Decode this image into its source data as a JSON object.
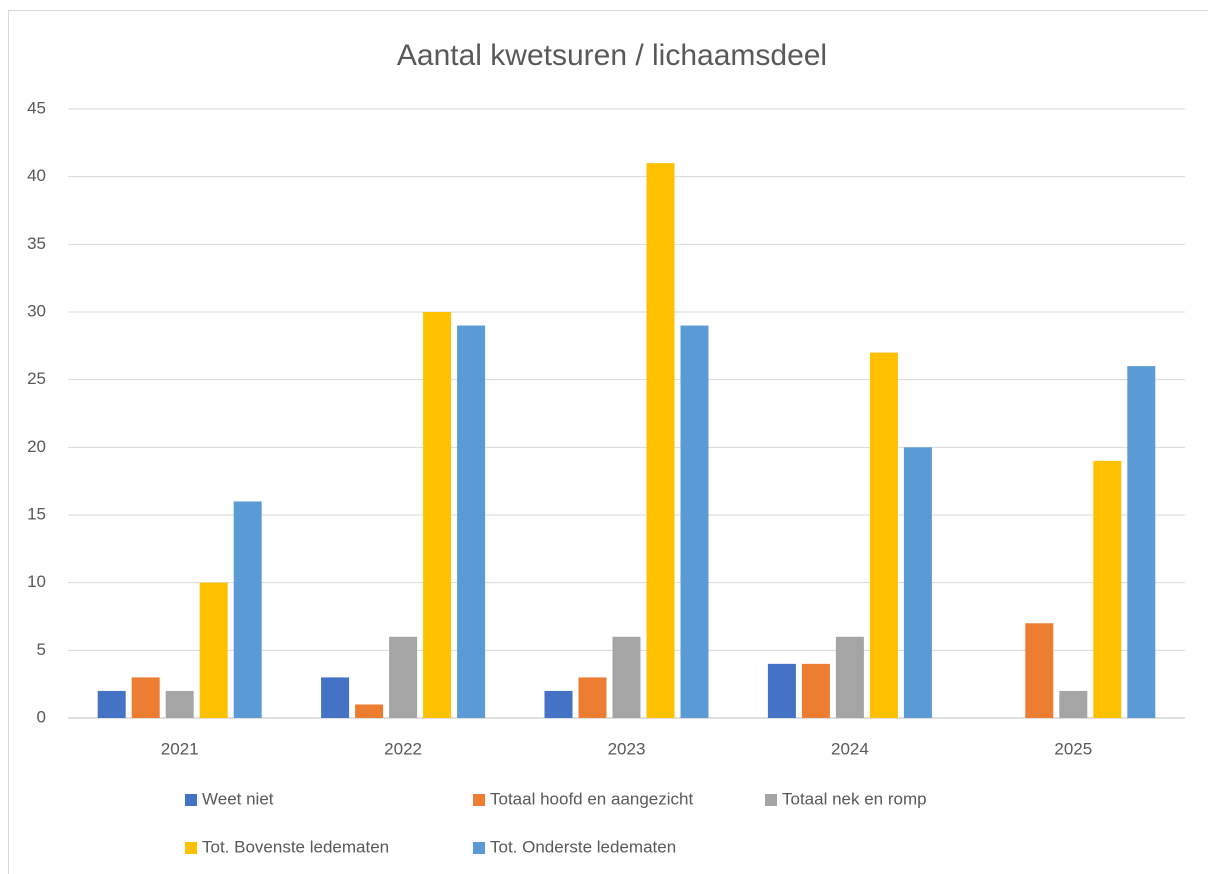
{
  "chart_data": {
    "type": "bar",
    "title": "Aantal kwetsuren / lichaamsdeel",
    "categories": [
      "2021",
      "2022",
      "2023",
      "2024",
      "2025"
    ],
    "series": [
      {
        "name": "Weet niet",
        "color": "#4472c4",
        "values": [
          2,
          3,
          2,
          4,
          0
        ]
      },
      {
        "name": "Totaal hoofd en aangezicht",
        "color": "#ed7d31",
        "values": [
          3,
          1,
          3,
          4,
          7
        ]
      },
      {
        "name": "Totaal nek en romp",
        "color": "#a5a5a5",
        "values": [
          2,
          6,
          6,
          6,
          2
        ]
      },
      {
        "name": "Tot. Bovenste ledematen",
        "color": "#ffc000",
        "values": [
          10,
          30,
          41,
          27,
          19
        ]
      },
      {
        "name": "Tot. Onderste ledematen",
        "color": "#5b9bd5",
        "values": [
          16,
          29,
          29,
          20,
          26
        ]
      }
    ],
    "ylim": [
      0,
      45
    ],
    "yticks": [
      0,
      5,
      10,
      15,
      20,
      25,
      30,
      35,
      40,
      45
    ],
    "grid": true,
    "legend": "bottom"
  }
}
